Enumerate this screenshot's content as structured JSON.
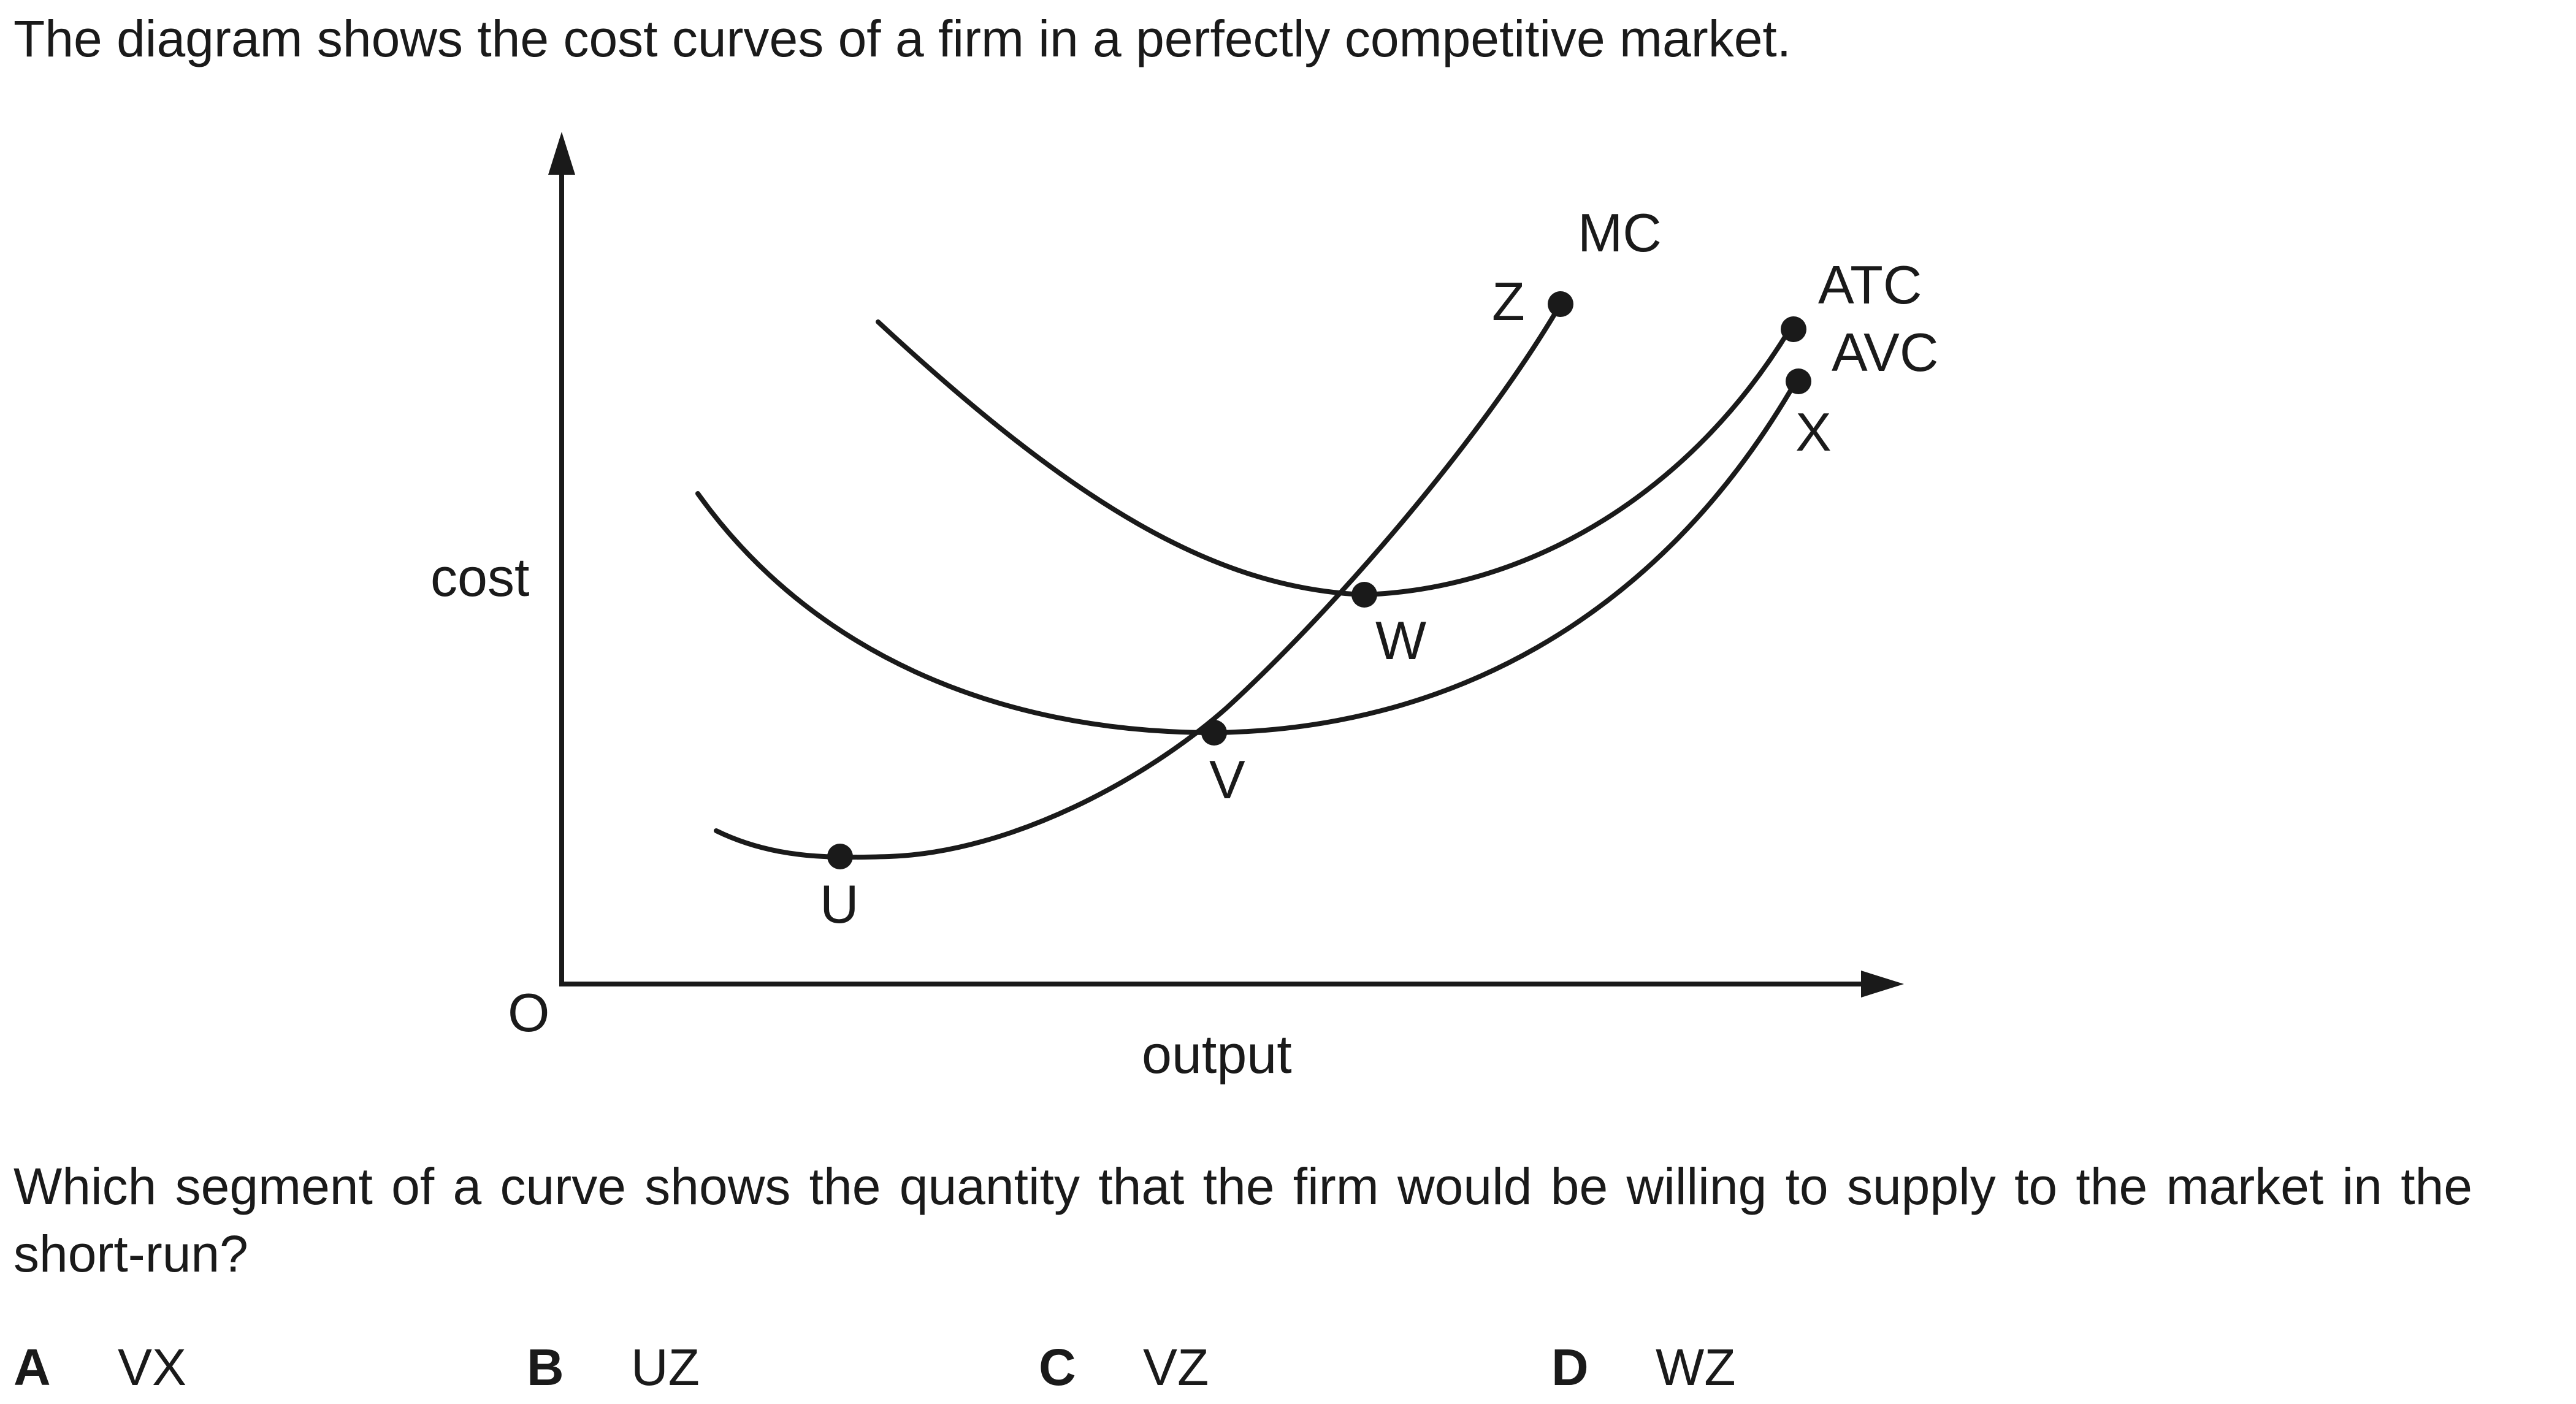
{
  "intro_text": "The diagram shows the cost curves of a firm in a perfectly competitive market.",
  "diagram": {
    "y_axis_label": "cost",
    "x_axis_label": "output",
    "origin_label": "O",
    "curves": {
      "mc": "MC",
      "atc": "ATC",
      "avc": "AVC"
    },
    "points": {
      "u": "U",
      "v": "V",
      "w": "W",
      "x": "X",
      "z": "Z"
    }
  },
  "question_text": "Which segment of a curve shows the quantity that the firm would be willing to supply to the market in the short-run?",
  "options": [
    {
      "letter": "A",
      "text": "VX"
    },
    {
      "letter": "B",
      "text": "UZ"
    },
    {
      "letter": "C",
      "text": "VZ"
    },
    {
      "letter": "D",
      "text": "WZ"
    }
  ]
}
